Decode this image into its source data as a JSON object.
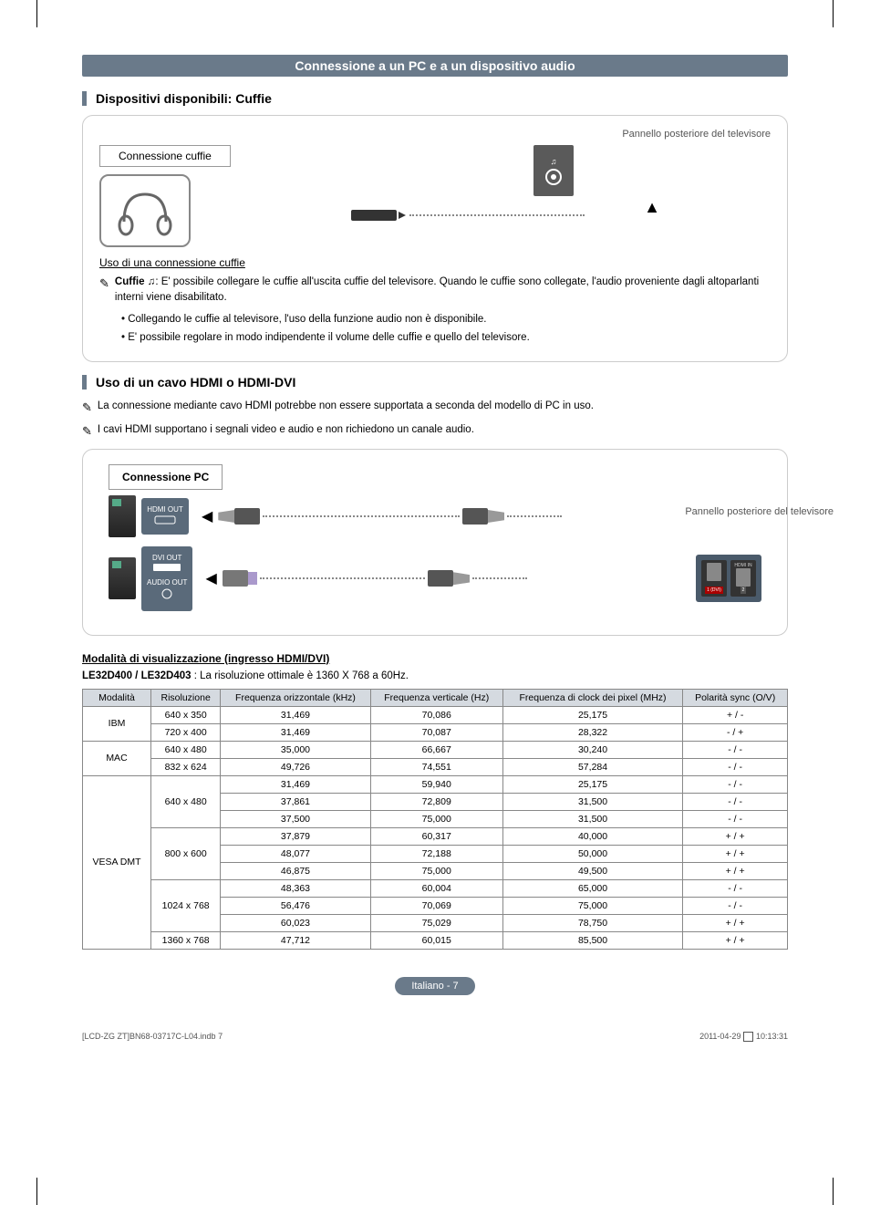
{
  "section_title": "Connessione a un PC e a un dispositivo audio",
  "sub1": "Dispositivi disponibili: Cuffie",
  "panel1": {
    "tv_back": "Pannello posteriore del televisore",
    "conn_label": "Connessione cuffie",
    "usage_title": "Uso di una connessione cuffie",
    "note_bold": "Cuffie",
    "note_text": ": E' possibile collegare le cuffie all'uscita cuffie del televisore. Quando le cuffie sono collegate, l'audio proveniente dagli altoparlanti interni viene disabilitato.",
    "bullet1": "Collegando le cuffie al televisore, l'uso della funzione audio non è disponibile.",
    "bullet2": "E' possibile regolare in modo indipendente il volume delle cuffie e quello del televisore."
  },
  "sub2": "Uso di un cavo HDMI o HDMI-DVI",
  "note2_1": "La connessione mediante cavo HDMI potrebbe non essere supportata a seconda del modello di PC in uso.",
  "note2_2": "I cavi HDMI supportano i segnali video e audio e non richiedono un canale audio.",
  "panel2": {
    "pc_label": "Connessione PC",
    "hdmi_out": "HDMI OUT",
    "dvi_out": "DVI OUT",
    "audio_out": "AUDIO OUT",
    "tv_back": "Pannello posteriore del televisore",
    "slot1": "1 (DVI)",
    "slot2": "2",
    "hdmi_in": "HDMI IN"
  },
  "table": {
    "title": "Modalità di visualizzazione (ingresso HDMI/DVI)",
    "models": "LE32D400 / LE32D403",
    "desc": " : La risoluzione ottimale è 1360 X 768 a 60Hz.",
    "headers": [
      "Modalità",
      "Risoluzione",
      "Frequenza orizzontale (kHz)",
      "Frequenza verticale (Hz)",
      "Frequenza di clock dei pixel (MHz)",
      "Polarità sync (O/V)"
    ],
    "rows": [
      {
        "mode": "IBM",
        "span": 2,
        "res": "640 x 350",
        "h": "31,469",
        "v": "70,086",
        "c": "25,175",
        "p": "+ / -"
      },
      {
        "mode": "",
        "span": 0,
        "res": "720 x 400",
        "h": "31,469",
        "v": "70,087",
        "c": "28,322",
        "p": "- / +"
      },
      {
        "mode": "MAC",
        "span": 2,
        "res": "640 x 480",
        "h": "35,000",
        "v": "66,667",
        "c": "30,240",
        "p": "- / -"
      },
      {
        "mode": "",
        "span": 0,
        "res": "832 x 624",
        "h": "49,726",
        "v": "74,551",
        "c": "57,284",
        "p": "- / -"
      },
      {
        "mode": "VESA DMT",
        "span": 10,
        "res": "640 x 480",
        "resspan": 3,
        "h": "31,469",
        "v": "59,940",
        "c": "25,175",
        "p": "- / -"
      },
      {
        "mode": "",
        "span": 0,
        "res": "",
        "resspan": 0,
        "h": "37,861",
        "v": "72,809",
        "c": "31,500",
        "p": "- / -"
      },
      {
        "mode": "",
        "span": 0,
        "res": "",
        "resspan": 0,
        "h": "37,500",
        "v": "75,000",
        "c": "31,500",
        "p": "- / -"
      },
      {
        "mode": "",
        "span": 0,
        "res": "800 x 600",
        "resspan": 3,
        "h": "37,879",
        "v": "60,317",
        "c": "40,000",
        "p": "+ / +"
      },
      {
        "mode": "",
        "span": 0,
        "res": "",
        "resspan": 0,
        "h": "48,077",
        "v": "72,188",
        "c": "50,000",
        "p": "+ / +"
      },
      {
        "mode": "",
        "span": 0,
        "res": "",
        "resspan": 0,
        "h": "46,875",
        "v": "75,000",
        "c": "49,500",
        "p": "+ / +"
      },
      {
        "mode": "",
        "span": 0,
        "res": "1024 x 768",
        "resspan": 3,
        "h": "48,363",
        "v": "60,004",
        "c": "65,000",
        "p": "- / -"
      },
      {
        "mode": "",
        "span": 0,
        "res": "",
        "resspan": 0,
        "h": "56,476",
        "v": "70,069",
        "c": "75,000",
        "p": "- / -"
      },
      {
        "mode": "",
        "span": 0,
        "res": "",
        "resspan": 0,
        "h": "60,023",
        "v": "75,029",
        "c": "78,750",
        "p": "+ / +"
      },
      {
        "mode": "",
        "span": 0,
        "res": "1360 x 768",
        "resspan": 1,
        "h": "47,712",
        "v": "60,015",
        "c": "85,500",
        "p": "+ / +"
      }
    ]
  },
  "footer": {
    "page": "Italiano - 7",
    "file": "[LCD-ZG ZT]BN68-03717C-L04.indb   7",
    "date": "2011-04-29   ",
    "time": "10:13:31"
  }
}
